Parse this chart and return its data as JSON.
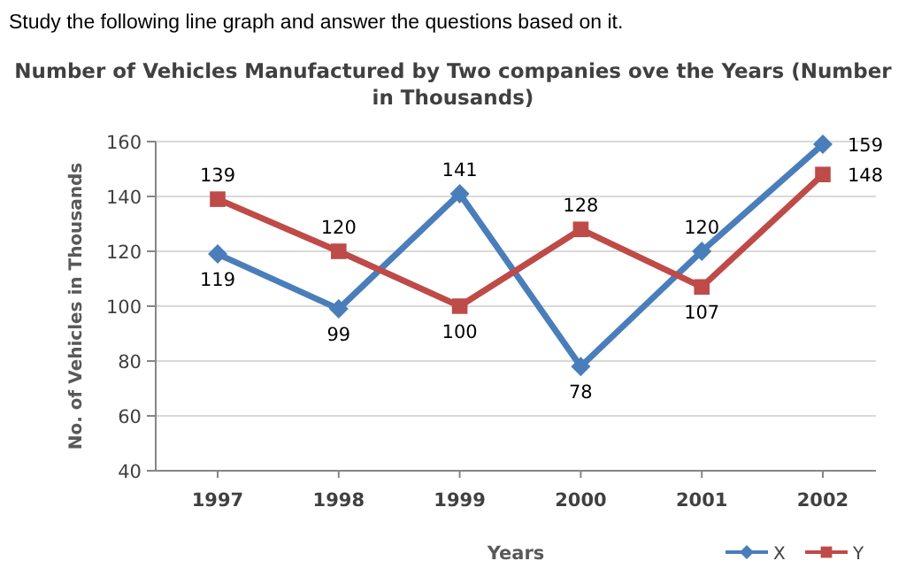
{
  "chart_data": {
    "type": "line",
    "title": "Number of Vehicles Manufactured by Two companies ove the Years (Number in Thousands)",
    "annotations": [
      "Study the following line graph and answer the questions based on it."
    ],
    "xlabel": "Years",
    "ylabel": "No. of Vehicles in Thousands",
    "categories": [
      "1997",
      "1998",
      "1999",
      "2000",
      "2001",
      "2002"
    ],
    "series": [
      {
        "name": "X",
        "color": "#4a7ebb",
        "marker": "diamond",
        "values": [
          119,
          99,
          141,
          78,
          120,
          159
        ]
      },
      {
        "name": "Y",
        "color": "#be4b48",
        "marker": "square",
        "values": [
          139,
          120,
          100,
          128,
          107,
          148
        ]
      }
    ],
    "ylim": [
      40,
      160
    ],
    "yticks": [
      40,
      60,
      80,
      100,
      120,
      140,
      160
    ],
    "grid": "y",
    "legend": "bottom right",
    "data_labels": true
  }
}
